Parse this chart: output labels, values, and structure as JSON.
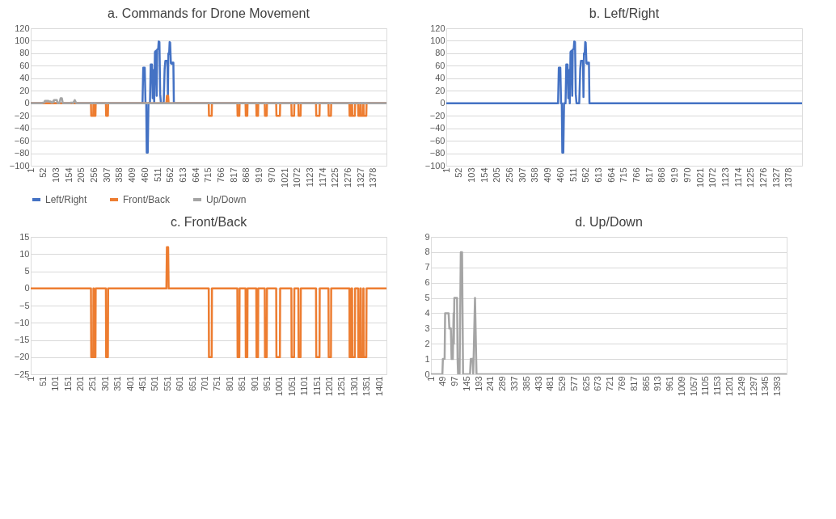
{
  "chart_data": [
    {
      "type": "line",
      "title": "a.  Commands for Drone Movement",
      "xlim": [
        1,
        1430
      ],
      "xticks": [
        1,
        52,
        103,
        154,
        205,
        256,
        307,
        358,
        409,
        460,
        511,
        562,
        613,
        664,
        715,
        766,
        817,
        868,
        919,
        970,
        1021,
        1072,
        1123,
        1174,
        1225,
        1276,
        1327,
        1378
      ],
      "ylim": [
        -100,
        120
      ],
      "yticks": [
        -100,
        -80,
        -60,
        -40,
        -20,
        0,
        20,
        40,
        60,
        80,
        100,
        120
      ],
      "grid": "y",
      "legend": "bottom",
      "series": [
        {
          "name": "Left/Right",
          "color": "#4472c4",
          "x": [
            1,
            450,
            453,
            459,
            462,
            465,
            467,
            471,
            474,
            480,
            483,
            488,
            491,
            494,
            497,
            500,
            504,
            507,
            509,
            513,
            515,
            518,
            521,
            524,
            535,
            539,
            542,
            550,
            552,
            554,
            557,
            559,
            561,
            564,
            567,
            569,
            574,
            576,
            1430
          ],
          "values": [
            0,
            0,
            57,
            57,
            0,
            0,
            -79,
            -79,
            0,
            0,
            62,
            62,
            8,
            53,
            0,
            82,
            84,
            12,
            86,
            87,
            99,
            98,
            15,
            0,
            0,
            55,
            68,
            68,
            10,
            80,
            79,
            98,
            97,
            64,
            63,
            65,
            65,
            0,
            0
          ]
        },
        {
          "name": "Front/Back",
          "color": "#ed7d31",
          "x": [
            1,
            243,
            244,
            252,
            253,
            254,
            255,
            261,
            262,
            303,
            304,
            311,
            312,
            546,
            548,
            553,
            555,
            716,
            717,
            728,
            729,
            831,
            832,
            839,
            840,
            864,
            865,
            871,
            872,
            907,
            908,
            914,
            915,
            941,
            942,
            949,
            950,
            987,
            988,
            1002,
            1003,
            1048,
            1049,
            1059,
            1060,
            1076,
            1077,
            1085,
            1086,
            1147,
            1148,
            1161,
            1162,
            1197,
            1198,
            1207,
            1208,
            1281,
            1282,
            1288,
            1289,
            1292,
            1293,
            1303,
            1304,
            1316,
            1317,
            1324,
            1325,
            1327,
            1328,
            1336,
            1337,
            1338,
            1339,
            1349,
            1350,
            1430
          ],
          "values": [
            0,
            0,
            -20,
            -20,
            0,
            0,
            -20,
            -20,
            0,
            0,
            -20,
            -20,
            0,
            0,
            12,
            12,
            0,
            0,
            -20,
            -20,
            0,
            0,
            -20,
            -20,
            0,
            0,
            -20,
            -20,
            0,
            0,
            -20,
            -20,
            0,
            0,
            -20,
            -20,
            0,
            0,
            -20,
            -20,
            0,
            0,
            -20,
            -20,
            0,
            0,
            -20,
            -20,
            0,
            0,
            -20,
            -20,
            0,
            0,
            -20,
            -20,
            0,
            0,
            -20,
            -20,
            0,
            0,
            -20,
            -20,
            0,
            0,
            -20,
            -20,
            0,
            0,
            -20,
            -20,
            0,
            0,
            -20,
            -20,
            0,
            0
          ]
        },
        {
          "name": "Up/Down",
          "color": "#a5a5a5",
          "x": [
            1,
            47,
            49,
            56,
            58,
            72,
            75,
            81,
            84,
            89,
            92,
            93,
            95,
            106,
            108,
            110,
            113,
            116,
            121,
            126,
            130,
            158,
            161,
            168,
            171,
            178,
            184,
            1430
          ],
          "values": [
            0,
            0,
            1,
            1,
            4,
            4,
            3,
            3,
            1,
            1,
            4,
            2,
            5,
            5,
            1,
            0,
            1,
            0,
            8,
            8,
            0,
            0,
            1,
            1,
            0,
            5,
            0,
            0
          ]
        }
      ]
    },
    {
      "type": "line",
      "title": "b.  Left/Right",
      "xlim": [
        1,
        1430
      ],
      "xticks": [
        1,
        52,
        103,
        154,
        205,
        256,
        307,
        358,
        409,
        460,
        511,
        562,
        613,
        664,
        715,
        766,
        817,
        868,
        919,
        970,
        1021,
        1072,
        1123,
        1174,
        1225,
        1276,
        1327,
        1378
      ],
      "ylim": [
        -100,
        120
      ],
      "yticks": [
        -100,
        -80,
        -60,
        -40,
        -20,
        0,
        20,
        40,
        60,
        80,
        100,
        120
      ],
      "grid": "y",
      "series": [
        {
          "color": "#4472c4",
          "x": [
            1,
            450,
            453,
            459,
            462,
            465,
            467,
            471,
            474,
            480,
            483,
            488,
            491,
            494,
            497,
            500,
            504,
            507,
            509,
            513,
            515,
            518,
            521,
            524,
            535,
            539,
            542,
            550,
            552,
            554,
            557,
            559,
            561,
            564,
            567,
            569,
            574,
            576,
            1430
          ],
          "values": [
            0,
            0,
            57,
            57,
            0,
            0,
            -79,
            -79,
            0,
            0,
            62,
            62,
            8,
            53,
            0,
            82,
            84,
            12,
            86,
            87,
            99,
            98,
            15,
            0,
            0,
            55,
            68,
            68,
            10,
            80,
            79,
            98,
            97,
            64,
            63,
            65,
            65,
            0,
            0
          ]
        }
      ]
    },
    {
      "type": "line",
      "title": "c.  Front/Back",
      "xlim": [
        1,
        1430
      ],
      "xticks": [
        1,
        51,
        101,
        151,
        201,
        251,
        301,
        351,
        401,
        451,
        501,
        551,
        601,
        651,
        701,
        751,
        801,
        851,
        901,
        951,
        1001,
        1051,
        1101,
        1151,
        1201,
        1251,
        1301,
        1351,
        1401
      ],
      "ylim": [
        -25,
        15
      ],
      "yticks": [
        -25,
        -20,
        -15,
        -10,
        -5,
        0,
        5,
        10,
        15
      ],
      "grid": "y",
      "series": [
        {
          "color": "#ed7d31",
          "x": [
            1,
            243,
            244,
            252,
            253,
            254,
            255,
            261,
            262,
            303,
            304,
            311,
            312,
            546,
            548,
            553,
            555,
            716,
            717,
            728,
            729,
            831,
            832,
            839,
            840,
            864,
            865,
            871,
            872,
            907,
            908,
            914,
            915,
            941,
            942,
            949,
            950,
            987,
            988,
            1002,
            1003,
            1048,
            1049,
            1059,
            1060,
            1076,
            1077,
            1085,
            1086,
            1147,
            1148,
            1161,
            1162,
            1197,
            1198,
            1207,
            1208,
            1281,
            1282,
            1288,
            1289,
            1292,
            1293,
            1303,
            1304,
            1316,
            1317,
            1324,
            1325,
            1327,
            1328,
            1336,
            1337,
            1338,
            1339,
            1349,
            1350,
            1430
          ],
          "values": [
            0,
            0,
            -20,
            -20,
            0,
            0,
            -20,
            -20,
            0,
            0,
            -20,
            -20,
            0,
            0,
            12,
            12,
            0,
            0,
            -20,
            -20,
            0,
            0,
            -20,
            -20,
            0,
            0,
            -20,
            -20,
            0,
            0,
            -20,
            -20,
            0,
            0,
            -20,
            -20,
            0,
            0,
            -20,
            -20,
            0,
            0,
            -20,
            -20,
            0,
            0,
            -20,
            -20,
            0,
            0,
            -20,
            -20,
            0,
            0,
            -20,
            -20,
            0,
            0,
            -20,
            -20,
            0,
            0,
            -20,
            -20,
            0,
            0,
            -20,
            -20,
            0,
            0,
            -20,
            -20,
            0,
            0,
            -20,
            -20,
            0,
            0
          ]
        }
      ]
    },
    {
      "type": "line",
      "title": "d.  Up/Down",
      "xlim": [
        1,
        1430
      ],
      "xticks": [
        1,
        49,
        97,
        145,
        193,
        241,
        289,
        337,
        385,
        433,
        481,
        529,
        577,
        625,
        673,
        721,
        769,
        817,
        865,
        913,
        961,
        1009,
        1057,
        1105,
        1153,
        1201,
        1249,
        1297,
        1345,
        1393
      ],
      "ylim": [
        0,
        9
      ],
      "yticks": [
        0,
        1,
        2,
        3,
        4,
        5,
        6,
        7,
        8,
        9
      ],
      "grid": "y",
      "series": [
        {
          "color": "#a5a5a5",
          "x": [
            1,
            47,
            49,
            56,
            58,
            72,
            75,
            81,
            84,
            89,
            92,
            93,
            95,
            106,
            108,
            110,
            113,
            116,
            121,
            126,
            130,
            158,
            161,
            168,
            171,
            178,
            184,
            1430
          ],
          "values": [
            0,
            0,
            1,
            1,
            4,
            4,
            3,
            3,
            1,
            1,
            4,
            2,
            5,
            5,
            1,
            0,
            1,
            0,
            8,
            8,
            0,
            0,
            1,
            1,
            0,
            5,
            0,
            0
          ]
        }
      ]
    }
  ]
}
